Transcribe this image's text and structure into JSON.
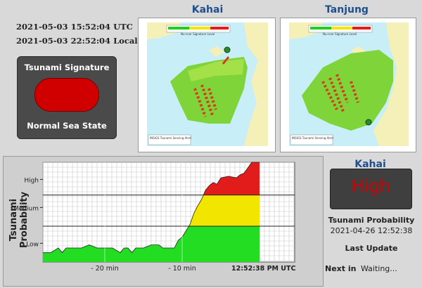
{
  "header": {
    "utc_time": "2021-05-03 15:52:04 UTC",
    "local_time": "2021-05-03 22:52:04 Local"
  },
  "signature_panel": {
    "title": "Tsunami Signature",
    "status": "Normal Sea State",
    "light_color": "#d00000"
  },
  "maps": [
    {
      "title": "Kahai",
      "scale_title": "Nu-ncer Signature Level",
      "footer": "INSIGS Tsunami Sensing Alert"
    },
    {
      "title": "Tanjung",
      "scale_title": "Nu-ncer Signature Level",
      "footer": "INSIGS Tsunami Sensing Alert"
    }
  ],
  "chart_data": {
    "type": "area",
    "ylabel": "Tsunami Probability",
    "y_levels": [
      "Low",
      "Medium",
      "High"
    ],
    "x_ticks": [
      "- 20 min",
      "- 10 min",
      "12:52:38 PM UTC"
    ],
    "x": [
      -28,
      -27,
      -26,
      -25.5,
      -25,
      -24,
      -23.5,
      -23,
      -22,
      -21,
      -20,
      -19,
      -18,
      -17.5,
      -17,
      -16.5,
      -16,
      -15.5,
      -15,
      -14,
      -13,
      -12.5,
      -12,
      -11,
      -10.5,
      -10,
      -9.5,
      -9,
      -8.5,
      -8,
      -7.5,
      -7,
      -6.5,
      -6,
      -5.5,
      -5,
      -4,
      -3,
      -2.5,
      -2,
      -1,
      0
    ],
    "y": [
      0.3,
      0.3,
      0.45,
      0.3,
      0.45,
      0.45,
      0.45,
      0.45,
      0.55,
      0.45,
      0.45,
      0.45,
      0.3,
      0.45,
      0.45,
      0.3,
      0.45,
      0.45,
      0.45,
      0.55,
      0.55,
      0.45,
      0.45,
      0.45,
      0.7,
      0.8,
      1.0,
      1.2,
      1.55,
      1.8,
      2.0,
      2.3,
      2.45,
      2.55,
      2.5,
      2.7,
      2.75,
      2.7,
      2.8,
      2.85,
      3.2,
      3.2
    ],
    "color_low": "#22dd22",
    "color_medium": "#f2e600",
    "color_high": "#e21b1b"
  },
  "right_panel": {
    "station": "Kahai",
    "level": "High",
    "prob_label": "Tsunami Probability",
    "prob_time": "2021-04-26 12:52:38",
    "last_update_label": "Last Update",
    "next_label": "Next in",
    "next_value": "Waiting..."
  }
}
